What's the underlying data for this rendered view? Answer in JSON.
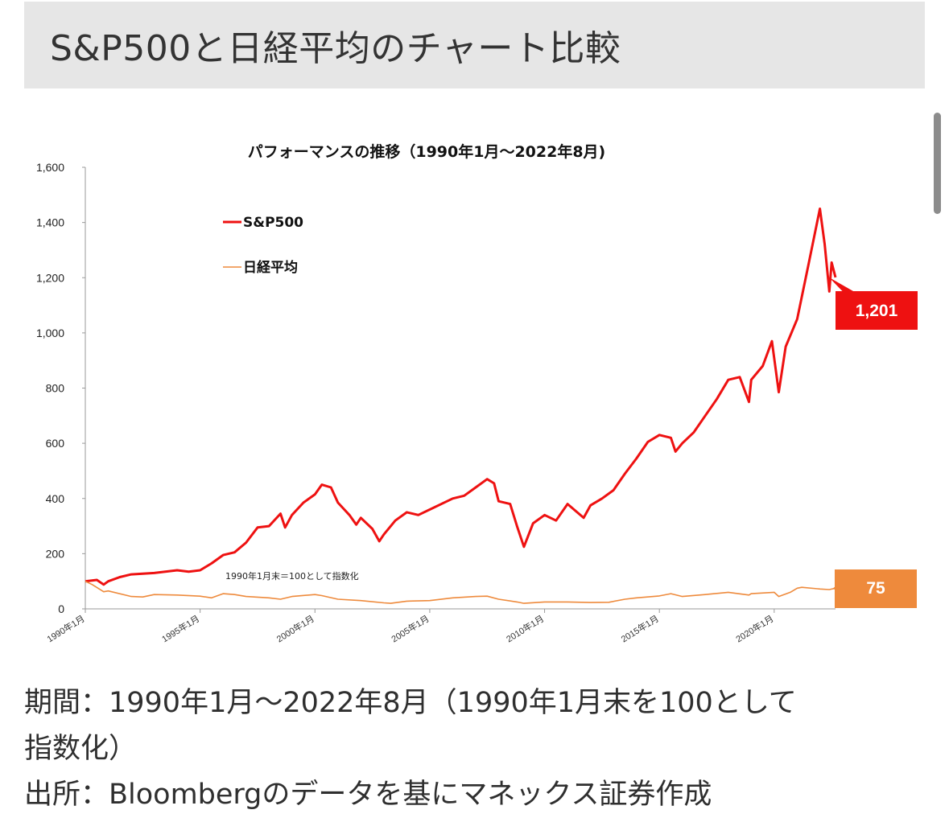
{
  "header": {
    "title": "S&P500と日経平均のチャート比較"
  },
  "caption": {
    "line1": "期間：1990年1月〜2022年8月（1990年1月末を100として",
    "line2": "指数化）",
    "line3": "出所：Bloombergのデータを基にマネックス証券作成"
  },
  "colors": {
    "sp500": "#ee1111",
    "nikkei": "#ee8a3c",
    "header_bg": "#e6e6e6"
  },
  "chart_data": {
    "type": "line",
    "title": "パフォーマンスの推移（1990年1月〜2022年8月)",
    "xlabel": "",
    "ylabel": "",
    "ylim": [
      0,
      1600
    ],
    "xlim": [
      1990.0,
      2022.67
    ],
    "yticks": [
      0,
      200,
      400,
      600,
      800,
      1000,
      1200,
      1400,
      1600
    ],
    "ytick_labels": [
      "0",
      "200",
      "400",
      "600",
      "800",
      "1,000",
      "1,200",
      "1,400",
      "1,600"
    ],
    "xticks": [
      1990,
      1995,
      2000,
      2005,
      2010,
      2015,
      2020
    ],
    "xtick_labels": [
      "1990年1月",
      "1995年1月",
      "2000年1月",
      "2005年1月",
      "2010年1月",
      "2015年1月",
      "2020年1月"
    ],
    "grid": false,
    "legend_position": "top-left",
    "annotation": "1990年1月末＝100として指数化",
    "series": [
      {
        "name": "S&P500",
        "end_label": "1,201",
        "x": [
          1990.0,
          1990.5,
          1990.8,
          1991.0,
          1991.5,
          1992.0,
          1993.0,
          1994.0,
          1994.5,
          1995.0,
          1995.5,
          1996.0,
          1996.5,
          1997.0,
          1997.5,
          1998.0,
          1998.5,
          1998.7,
          1999.0,
          1999.5,
          2000.0,
          2000.3,
          2000.7,
          2001.0,
          2001.5,
          2001.8,
          2002.0,
          2002.5,
          2002.8,
          2003.0,
          2003.5,
          2004.0,
          2004.5,
          2005.0,
          2006.0,
          2006.5,
          2007.0,
          2007.5,
          2007.8,
          2008.0,
          2008.5,
          2008.8,
          2009.1,
          2009.5,
          2010.0,
          2010.5,
          2011.0,
          2011.7,
          2012.0,
          2012.5,
          2013.0,
          2013.5,
          2014.0,
          2014.5,
          2015.0,
          2015.5,
          2015.7,
          2016.0,
          2016.5,
          2017.0,
          2017.5,
          2018.0,
          2018.5,
          2018.9,
          2019.0,
          2019.5,
          2019.9,
          2020.2,
          2020.5,
          2021.0,
          2021.5,
          2021.99,
          2022.2,
          2022.4,
          2022.5,
          2022.67
        ],
        "values": [
          100,
          105,
          88,
          100,
          115,
          125,
          130,
          140,
          135,
          140,
          165,
          195,
          205,
          240,
          295,
          300,
          345,
          295,
          340,
          385,
          415,
          450,
          440,
          385,
          340,
          305,
          330,
          290,
          245,
          270,
          320,
          350,
          340,
          360,
          400,
          410,
          440,
          470,
          455,
          390,
          380,
          300,
          225,
          310,
          340,
          320,
          380,
          330,
          375,
          400,
          430,
          490,
          545,
          605,
          630,
          620,
          570,
          600,
          640,
          700,
          760,
          830,
          840,
          750,
          830,
          880,
          970,
          785,
          950,
          1050,
          1250,
          1450,
          1320,
          1150,
          1255,
          1201
        ]
      },
      {
        "name": "日経平均",
        "end_label": "75",
        "x": [
          1990.0,
          1990.3,
          1990.8,
          1991.0,
          1992.0,
          1992.5,
          1993.0,
          1994.0,
          1995.0,
          1995.5,
          1996.0,
          1996.5,
          1997.0,
          1998.0,
          1998.5,
          1999.0,
          2000.0,
          2000.3,
          2001.0,
          2002.0,
          2003.0,
          2003.3,
          2004.0,
          2005.0,
          2006.0,
          2007.0,
          2007.5,
          2008.0,
          2008.8,
          2009.1,
          2010.0,
          2011.0,
          2012.0,
          2012.8,
          2013.5,
          2014.0,
          2015.0,
          2015.5,
          2016.0,
          2017.0,
          2018.0,
          2018.9,
          2019.0,
          2020.0,
          2020.2,
          2020.7,
          2021.0,
          2021.2,
          2022.0,
          2022.4,
          2022.67
        ],
        "values": [
          100,
          88,
          62,
          65,
          45,
          43,
          52,
          50,
          46,
          40,
          55,
          52,
          45,
          40,
          35,
          45,
          52,
          48,
          35,
          30,
          22,
          20,
          28,
          30,
          40,
          45,
          46,
          35,
          25,
          20,
          25,
          25,
          23,
          24,
          35,
          40,
          47,
          55,
          45,
          52,
          60,
          50,
          55,
          60,
          45,
          60,
          75,
          78,
          72,
          70,
          75
        ]
      }
    ]
  }
}
